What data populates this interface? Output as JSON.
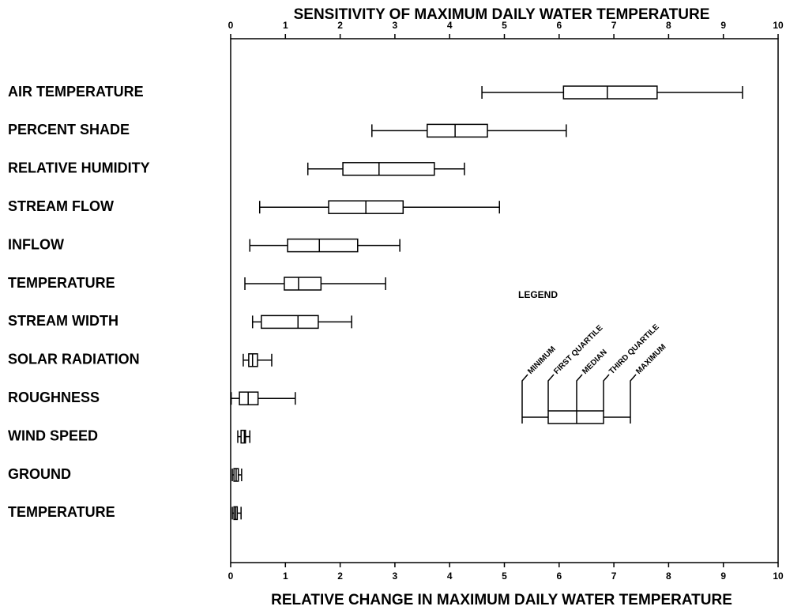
{
  "chart_data": {
    "type": "box",
    "title": "SENSITIVITY OF MAXIMUM DAILY WATER TEMPERATURE",
    "x_label": "RELATIVE CHANGE IN MAXIMUM DAILY WATER TEMPERATURE",
    "categories": [
      "AIR TEMPERATURE",
      "PERCENT SHADE",
      "RELATIVE HUMIDITY",
      "STREAM FLOW",
      "INFLOW",
      "TEMPERATURE",
      "STREAM WIDTH",
      "SOLAR RADIATION",
      "ROUGHNESS",
      "WIND SPEED",
      "GROUND",
      "TEMPERATURE"
    ],
    "min": [
      4.59,
      2.58,
      1.41,
      0.53,
      0.35,
      0.26,
      0.4,
      0.23,
      0.01,
      0.13,
      0.03,
      0.03
    ],
    "q1": [
      6.08,
      3.59,
      2.05,
      1.79,
      1.04,
      0.98,
      0.56,
      0.33,
      0.16,
      0.19,
      0.06,
      0.06
    ],
    "median": [
      6.88,
      4.1,
      2.71,
      2.47,
      1.62,
      1.24,
      1.23,
      0.4,
      0.32,
      0.25,
      0.1,
      0.09
    ],
    "q3": [
      7.79,
      4.69,
      3.72,
      3.15,
      2.32,
      1.65,
      1.6,
      0.49,
      0.5,
      0.27,
      0.14,
      0.12
    ],
    "max": [
      9.35,
      6.13,
      4.27,
      4.91,
      3.09,
      2.83,
      2.21,
      0.75,
      1.18,
      0.35,
      0.2,
      0.19
    ],
    "xlim": [
      0,
      10
    ],
    "xticks": [
      0,
      1,
      2,
      3,
      4,
      5,
      6,
      7,
      8,
      9,
      10
    ],
    "color": "#000000",
    "legend": {
      "title": "LEGEND",
      "labels": [
        "MINIMUM",
        "FIRST QUARTILE",
        "MEDIAN",
        "THIRD QUARTILE",
        "MAXIMUM"
      ]
    }
  }
}
